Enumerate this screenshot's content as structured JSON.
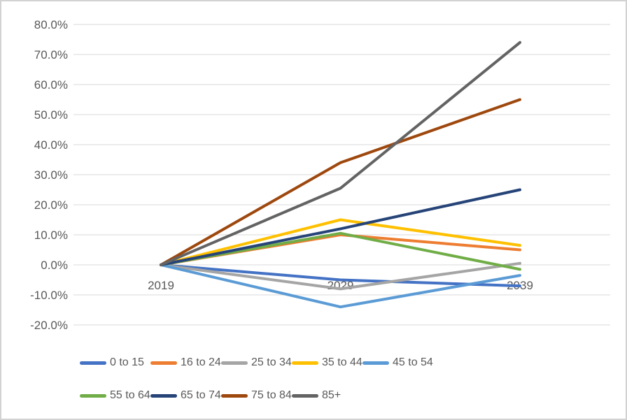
{
  "chart_data": {
    "type": "line",
    "title": "",
    "x": [
      "2019",
      "2029",
      "2039"
    ],
    "series": [
      {
        "name": "0 to 15",
        "color": "#4472C4",
        "values": [
          0,
          -5,
          -7
        ]
      },
      {
        "name": "16 to 24",
        "color": "#ED7D31",
        "values": [
          0,
          10,
          5
        ]
      },
      {
        "name": "25 to 34",
        "color": "#A5A5A5",
        "values": [
          0,
          -8,
          0.5
        ]
      },
      {
        "name": "35 to 44",
        "color": "#FFC000",
        "values": [
          0,
          15,
          6.5
        ]
      },
      {
        "name": "45 to 54",
        "color": "#5B9BD5",
        "values": [
          0,
          -14,
          -3.5
        ]
      },
      {
        "name": "55 to 64",
        "color": "#70AD47",
        "values": [
          0,
          10.5,
          -1.5
        ]
      },
      {
        "name": "65 to 74",
        "color": "#264478",
        "values": [
          0,
          12,
          25
        ]
      },
      {
        "name": "75 to 84",
        "color": "#9E480E",
        "values": [
          0,
          34,
          55
        ]
      },
      {
        "name": "85+",
        "color": "#636363",
        "values": [
          0,
          25.5,
          74
        ]
      }
    ],
    "ylim": [
      -20,
      80
    ],
    "ytick_step": 10,
    "ytick_labels": [
      "80.0%",
      "70.0%",
      "60.0%",
      "50.0%",
      "40.0%",
      "30.0%",
      "20.0%",
      "10.0%",
      "0.0%",
      "-10.0%",
      "-20.0%"
    ],
    "xlabel": "",
    "ylabel": "",
    "grid": true,
    "legend_position": "bottom",
    "colors": {
      "gridline": "#D9D9D9",
      "axis_text": "#595959",
      "frame_border": "#D2D2D2",
      "background": "#FFFFFF"
    }
  }
}
